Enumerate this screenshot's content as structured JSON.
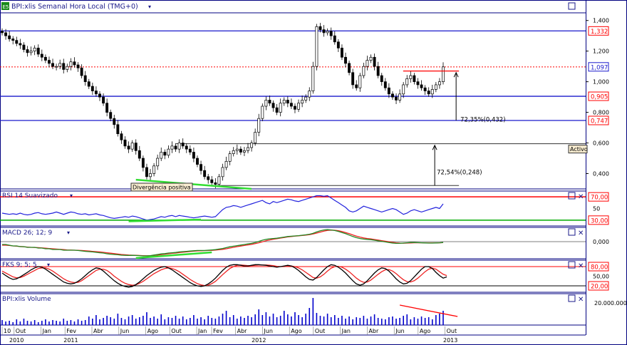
{
  "app": {
    "price_title": "BPI:xlis Semanal Hora Local (TMG+0)",
    "rsi_title": "RSI 14 Suavizado",
    "macd_title": "MACD 26; 12; 9",
    "fks_title": "FKS 9; 5; 5",
    "volume_title": "BPI:xlis Volume",
    "logo": "E5",
    "close_symbol": "✕",
    "dropdown_glyph": "▾"
  },
  "colors": {
    "frame": "#000080",
    "panel_line": "#1a1aaa",
    "ticker_line": "#ff0000",
    "divergence": "#33dd33",
    "rsi": "#2222dd",
    "macd": "#228822",
    "signal": "#ee2222",
    "volume": "#0000cc",
    "bull": "#ffffff",
    "bear": "#000000"
  },
  "chart_data": [
    {
      "type": "candlestick",
      "panel": "price",
      "title": "BPI:xlis Semanal Hora Local (TMG+0)",
      "ylim": [
        0.3,
        1.45
      ],
      "yticks": [
        "1,400",
        "1,200",
        "1,000",
        "0,800",
        "0,600",
        "0,400"
      ],
      "ytick_values": [
        1.4,
        1.2,
        1.0,
        0.8,
        0.6,
        0.4
      ],
      "close": [
        1.32,
        1.3,
        1.28,
        1.27,
        1.25,
        1.24,
        1.21,
        1.19,
        1.2,
        1.22,
        1.18,
        1.16,
        1.14,
        1.12,
        1.1,
        1.1,
        1.12,
        1.08,
        1.1,
        1.13,
        1.11,
        1.09,
        1.04,
        1.0,
        0.97,
        0.94,
        0.92,
        0.9,
        0.86,
        0.8,
        0.76,
        0.72,
        0.66,
        0.62,
        0.58,
        0.56,
        0.6,
        0.55,
        0.5,
        0.44,
        0.38,
        0.4,
        0.45,
        0.5,
        0.54,
        0.52,
        0.56,
        0.58,
        0.56,
        0.6,
        0.58,
        0.56,
        0.54,
        0.5,
        0.46,
        0.42,
        0.38,
        0.36,
        0.34,
        0.33,
        0.38,
        0.44,
        0.48,
        0.53,
        0.55,
        0.56,
        0.54,
        0.55,
        0.57,
        0.6,
        0.67,
        0.76,
        0.84,
        0.88,
        0.86,
        0.83,
        0.8,
        0.86,
        0.88,
        0.86,
        0.84,
        0.82,
        0.86,
        0.88,
        0.9,
        0.94,
        1.1,
        1.36,
        1.34,
        1.32,
        1.33,
        1.3,
        1.26,
        1.22,
        1.16,
        1.12,
        1.06,
        0.98,
        0.96,
        1.04,
        1.1,
        1.14,
        1.16,
        1.1,
        1.04,
        1.0,
        0.96,
        0.92,
        0.9,
        0.88,
        0.92,
        0.98,
        1.02,
        1.04,
        1.0,
        0.98,
        0.96,
        0.94,
        0.92,
        0.95,
        0.98,
        1.0,
        1.097
      ],
      "levels_blue": [
        1.332,
        0.905,
        0.747
      ],
      "level_red_dotted": 1.097,
      "level_labels": [
        "1,332",
        "1,097",
        "0,905",
        "0,747"
      ],
      "grey_lines": [
        0.595,
        0.322
      ],
      "annotations": [
        "72,35%(0,432)",
        "72,54%(0,248)",
        "Activo",
        "Divergência positiva"
      ]
    },
    {
      "type": "line",
      "panel": "rsi",
      "title": "RSI 14 Suavizado",
      "ylim": [
        20,
        80
      ],
      "levels": [
        70,
        30
      ],
      "level_labels": [
        "70,00",
        "30,00",
        "50"
      ],
      "values": [
        42,
        41,
        40,
        41,
        40,
        42,
        40,
        39,
        40,
        42,
        43,
        41,
        40,
        41,
        42,
        44,
        42,
        40,
        42,
        44,
        43,
        41,
        40,
        41,
        39,
        40,
        41,
        39,
        38,
        36,
        34,
        33,
        34,
        35,
        36,
        35,
        37,
        36,
        34,
        32,
        30,
        31,
        32,
        34,
        36,
        35,
        37,
        38,
        36,
        38,
        37,
        36,
        35,
        34,
        35,
        36,
        37,
        36,
        35,
        36,
        42,
        48,
        52,
        53,
        55,
        54,
        52,
        54,
        56,
        58,
        60,
        62,
        64,
        60,
        58,
        62,
        60,
        62,
        64,
        66,
        65,
        63,
        62,
        64,
        66,
        68,
        70,
        72,
        72,
        71,
        72,
        68,
        64,
        60,
        56,
        52,
        46,
        44,
        46,
        50,
        54,
        52,
        50,
        48,
        46,
        44,
        46,
        48,
        50,
        48,
        44,
        40,
        42,
        46,
        48,
        46,
        44,
        46,
        48,
        50,
        52,
        50,
        58
      ]
    },
    {
      "type": "line",
      "panel": "macd",
      "title": "MACD 26; 12; 9",
      "ylim": [
        -0.12,
        0.1
      ],
      "level_labels": [
        "0,000"
      ],
      "series": [
        {
          "values": [
            -0.02,
            -0.02,
            -0.025,
            -0.03,
            -0.03,
            -0.035,
            -0.035,
            -0.04,
            -0.04,
            -0.04,
            -0.045,
            -0.045,
            -0.05,
            -0.05,
            -0.055,
            -0.055,
            -0.055,
            -0.06,
            -0.06,
            -0.06,
            -0.06,
            -0.062,
            -0.065,
            -0.068,
            -0.07,
            -0.072,
            -0.075,
            -0.078,
            -0.08,
            -0.085,
            -0.088,
            -0.09,
            -0.092,
            -0.095,
            -0.096,
            -0.097,
            -0.096,
            -0.097,
            -0.098,
            -0.1,
            -0.1,
            -0.098,
            -0.094,
            -0.09,
            -0.086,
            -0.084,
            -0.08,
            -0.078,
            -0.076,
            -0.072,
            -0.07,
            -0.068,
            -0.066,
            -0.064,
            -0.062,
            -0.062,
            -0.062,
            -0.06,
            -0.058,
            -0.056,
            -0.052,
            -0.048,
            -0.042,
            -0.036,
            -0.032,
            -0.028,
            -0.024,
            -0.02,
            -0.016,
            -0.012,
            -0.006,
            0.002,
            0.01,
            0.016,
            0.02,
            0.022,
            0.024,
            0.028,
            0.032,
            0.036,
            0.038,
            0.04,
            0.042,
            0.045,
            0.048,
            0.052,
            0.058,
            0.068,
            0.076,
            0.082,
            0.084,
            0.082,
            0.078,
            0.072,
            0.064,
            0.056,
            0.046,
            0.036,
            0.028,
            0.022,
            0.018,
            0.016,
            0.014,
            0.01,
            0.006,
            0.002,
            -0.002,
            -0.006,
            -0.01,
            -0.012,
            -0.012,
            -0.01,
            -0.008,
            -0.006,
            -0.006,
            -0.007,
            -0.008,
            -0.009,
            -0.01,
            -0.01,
            -0.009,
            -0.008,
            -0.006
          ]
        },
        {
          "values": [
            -0.025,
            -0.025,
            -0.027,
            -0.03,
            -0.032,
            -0.034,
            -0.036,
            -0.038,
            -0.04,
            -0.041,
            -0.042,
            -0.044,
            -0.046,
            -0.048,
            -0.05,
            -0.052,
            -0.054,
            -0.056,
            -0.058,
            -0.059,
            -0.06,
            -0.061,
            -0.062,
            -0.064,
            -0.066,
            -0.068,
            -0.07,
            -0.072,
            -0.075,
            -0.078,
            -0.081,
            -0.084,
            -0.087,
            -0.09,
            -0.092,
            -0.094,
            -0.095,
            -0.096,
            -0.097,
            -0.098,
            -0.099,
            -0.099,
            -0.097,
            -0.094,
            -0.091,
            -0.088,
            -0.085,
            -0.082,
            -0.08,
            -0.077,
            -0.074,
            -0.072,
            -0.069,
            -0.067,
            -0.065,
            -0.064,
            -0.063,
            -0.062,
            -0.061,
            -0.059,
            -0.057,
            -0.054,
            -0.05,
            -0.045,
            -0.04,
            -0.035,
            -0.031,
            -0.027,
            -0.023,
            -0.019,
            -0.014,
            -0.008,
            -0.001,
            0.006,
            0.012,
            0.017,
            0.021,
            0.025,
            0.029,
            0.033,
            0.036,
            0.039,
            0.041,
            0.043,
            0.046,
            0.049,
            0.054,
            0.06,
            0.067,
            0.074,
            0.079,
            0.081,
            0.08,
            0.077,
            0.071,
            0.064,
            0.056,
            0.047,
            0.039,
            0.032,
            0.026,
            0.022,
            0.019,
            0.015,
            0.011,
            0.007,
            0.003,
            -0.001,
            -0.005,
            -0.008,
            -0.01,
            -0.011,
            -0.01,
            -0.009,
            -0.008,
            -0.008,
            -0.008,
            -0.009,
            -0.009,
            -0.009,
            -0.009,
            -0.008,
            -0.007
          ]
        }
      ]
    },
    {
      "type": "line",
      "panel": "fks",
      "title": "FKS 9; 5; 5",
      "ylim": [
        0,
        100
      ],
      "levels": [
        80,
        20
      ],
      "level_labels": [
        "80,00",
        "50,00",
        "20,00"
      ],
      "series": [
        {
          "values": [
            60,
            52,
            45,
            40,
            42,
            48,
            55,
            62,
            70,
            76,
            80,
            78,
            72,
            64,
            56,
            48,
            40,
            32,
            28,
            26,
            28,
            34,
            42,
            52,
            62,
            70,
            76,
            74,
            66,
            56,
            46,
            36,
            28,
            22,
            18,
            16,
            18,
            24,
            32,
            42,
            52,
            60,
            68,
            74,
            78,
            80,
            76,
            70,
            62,
            54,
            46,
            38,
            30,
            24,
            20,
            18,
            20,
            26,
            34,
            44,
            56,
            68,
            78,
            84,
            86,
            86,
            84,
            82,
            82,
            84,
            86,
            86,
            85,
            84,
            82,
            80,
            78,
            80,
            82,
            84,
            82,
            76,
            68,
            58,
            48,
            40,
            38,
            46,
            58,
            70,
            80,
            86,
            84,
            78,
            70,
            60,
            48,
            36,
            26,
            22,
            26,
            36,
            48,
            60,
            70,
            76,
            74,
            66,
            54,
            42,
            32,
            26,
            28,
            36,
            48,
            60,
            72,
            80,
            80,
            74,
            62,
            52,
            44,
            48
          ]
        },
        {
          "values": [
            66,
            60,
            54,
            48,
            45,
            46,
            50,
            56,
            62,
            68,
            74,
            76,
            76,
            72,
            66,
            58,
            50,
            42,
            36,
            32,
            30,
            31,
            36,
            44,
            52,
            60,
            68,
            72,
            72,
            68,
            60,
            50,
            42,
            34,
            28,
            24,
            22,
            23,
            28,
            34,
            42,
            50,
            58,
            64,
            70,
            74,
            76,
            74,
            70,
            64,
            56,
            48,
            40,
            33,
            27,
            23,
            21,
            22,
            27,
            34,
            44,
            55,
            65,
            74,
            80,
            84,
            85,
            84,
            83,
            83,
            84,
            85,
            85,
            85,
            84,
            83,
            81,
            80,
            80,
            81,
            82,
            80,
            76,
            70,
            62,
            54,
            46,
            44,
            48,
            56,
            66,
            75,
            80,
            81,
            78,
            72,
            64,
            54,
            44,
            36,
            31,
            32,
            38,
            47,
            56,
            64,
            70,
            71,
            66,
            58,
            48,
            39,
            33,
            32,
            36,
            44,
            54,
            64,
            72,
            75,
            72,
            64,
            56,
            52
          ]
        }
      ]
    },
    {
      "type": "bar",
      "panel": "volume",
      "title": "BPI:xlis Volume",
      "level_labels": [
        "20.000.000"
      ],
      "ylim": [
        0,
        40000000
      ],
      "values": [
        7,
        5,
        6,
        4,
        8,
        5,
        9,
        6,
        5,
        7,
        4,
        6,
        8,
        5,
        7,
        6,
        5,
        9,
        6,
        7,
        5,
        8,
        6,
        7,
        12,
        9,
        14,
        8,
        10,
        13,
        11,
        9,
        16,
        10,
        8,
        12,
        14,
        9,
        11,
        13,
        18,
        10,
        12,
        9,
        15,
        8,
        11,
        10,
        13,
        9,
        12,
        8,
        10,
        14,
        9,
        11,
        8,
        13,
        10,
        9,
        12,
        16,
        20,
        11,
        14,
        9,
        12,
        10,
        13,
        11,
        15,
        22,
        14,
        18,
        12,
        16,
        11,
        13,
        20,
        15,
        12,
        18,
        14,
        11,
        16,
        24,
        38,
        17,
        13,
        12,
        16,
        11,
        14,
        10,
        13,
        9,
        12,
        8,
        11,
        10,
        13,
        9,
        12,
        15,
        10,
        9,
        8,
        11,
        12,
        9,
        10,
        13,
        15,
        8,
        11,
        9,
        12,
        10,
        11,
        8,
        14,
        16,
        20
      ]
    }
  ],
  "x_axis": {
    "month_labels": [
      "10",
      "Out",
      "Jan",
      "Fev",
      "Abr",
      "Jun",
      "Ago",
      "Out",
      "Jan",
      "Fev",
      "Abr",
      "Jun",
      "Ago",
      "Out",
      "Jan",
      "Abr",
      "Jun",
      "Ago",
      "Out"
    ],
    "year_labels": [
      "2010",
      "2011",
      "2012",
      "2013"
    ]
  }
}
